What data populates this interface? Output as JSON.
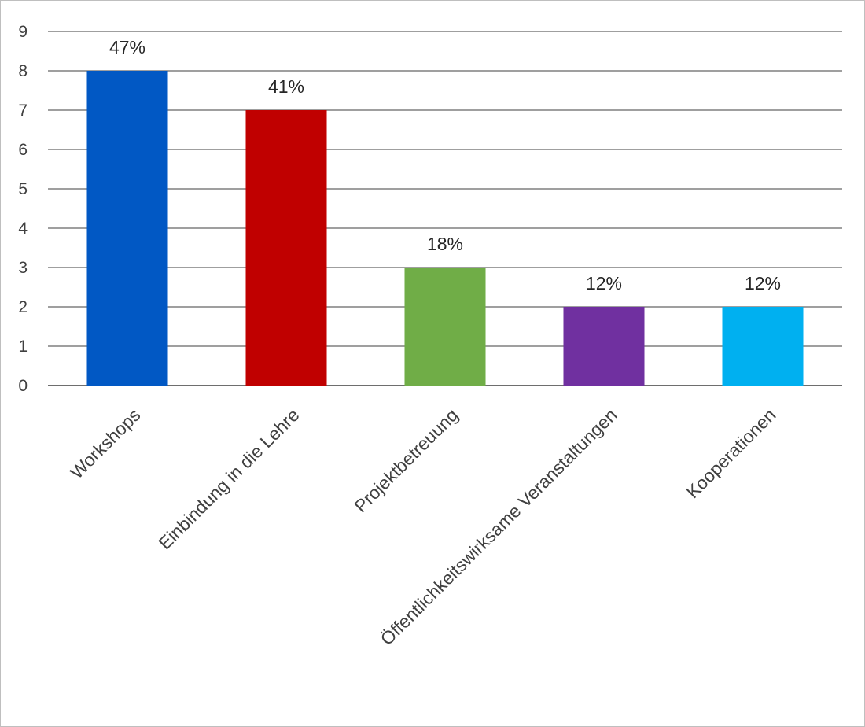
{
  "chart_data": {
    "type": "bar",
    "categories": [
      "Workshops",
      "Einbindung in die Lehre",
      "Projektbetreuung",
      "Öffentlichkeitswirksame Veranstaltungen",
      "Kooperationen"
    ],
    "values": [
      8,
      7,
      3,
      2,
      2
    ],
    "data_labels": [
      "47%",
      "41%",
      "18%",
      "12%",
      "12%"
    ],
    "colors": [
      "#0158C4",
      "#C00000",
      "#70AD47",
      "#7030A0",
      "#00B0F0"
    ],
    "ylim": [
      0,
      9
    ],
    "yticks": [
      0,
      1,
      2,
      3,
      4,
      5,
      6,
      7,
      8,
      9
    ],
    "grid": true,
    "legend": "none",
    "title": "",
    "xlabel": "",
    "ylabel": ""
  }
}
